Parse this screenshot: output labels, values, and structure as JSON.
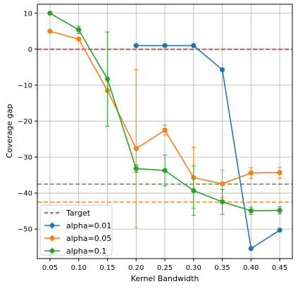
{
  "chart_data": {
    "type": "line",
    "title": "",
    "xlabel": "Kernel Bandwidth",
    "ylabel": "Coverage gap",
    "xlim": [
      0.028,
      0.472
    ],
    "ylim": [
      -58.2,
      12.5
    ],
    "xticks": [
      "0.05",
      "0.10",
      "0.15",
      "0.20",
      "0.25",
      "0.30",
      "0.35",
      "0.40",
      "0.45"
    ],
    "yticks": [
      "10",
      "0",
      "−10",
      "−20",
      "−30",
      "−40",
      "−50"
    ],
    "grid": true,
    "legend_position": "lower-left",
    "target": {
      "name": "Target",
      "value": 0,
      "color": "#d62728"
    },
    "series": [
      {
        "name": "alpha=0.01",
        "color": "#1f77b4",
        "x": [
          0.2,
          0.25,
          0.3,
          0.35,
          0.4,
          0.45
        ],
        "y": [
          1.0,
          1.0,
          1.0,
          -5.7,
          -55.4,
          -50.3
        ],
        "err": [
          0,
          0,
          0,
          0,
          0,
          0
        ],
        "hline": null
      },
      {
        "name": "alpha=0.05",
        "color": "#ff7f0e",
        "x": [
          0.05,
          0.1,
          0.15,
          0.2,
          0.25,
          0.3,
          0.35,
          0.4,
          0.45
        ],
        "y": [
          5.0,
          2.8,
          -11.5,
          -27.6,
          -22.5,
          -35.7,
          -37.4,
          -34.4,
          -34.3
        ],
        "err": [
          0,
          0,
          0,
          22.0,
          1.4,
          8.5,
          3.8,
          1.5,
          1.5
        ],
        "hline": -42.5
      },
      {
        "name": "alpha=0.1",
        "color": "#2ca02c",
        "x": [
          0.05,
          0.1,
          0.15,
          0.2,
          0.25,
          0.3,
          0.35,
          0.4,
          0.45
        ],
        "y": [
          10.0,
          5.4,
          -8.3,
          -33.2,
          -33.7,
          -39.3,
          -42.4,
          -44.9,
          -44.8
        ],
        "err": [
          0,
          1.0,
          13.1,
          1.0,
          4.3,
          6.9,
          3.5,
          1.0,
          1.0
        ],
        "hline": -37.5
      }
    ]
  }
}
